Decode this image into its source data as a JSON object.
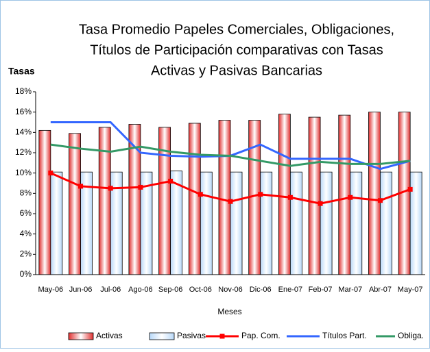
{
  "chart_data": {
    "type": "bar_line",
    "title": [
      "Tasa Promedio Papeles Comerciales, Obligaciones,",
      "Títulos de Participación comparativas con Tasas",
      "Activas y Pasivas Bancarias"
    ],
    "y_label": "Tasas",
    "x_label": "Meses",
    "categories": [
      "May-06",
      "Jun-06",
      "Jul-06",
      "Ago-06",
      "Sep-06",
      "Oct-06",
      "Nov-06",
      "Dic-06",
      "Ene-07",
      "Feb-07",
      "Mar-07",
      "Abr-07",
      "May-07"
    ],
    "ylim": [
      0,
      18
    ],
    "yticks": [
      {
        "value": 0,
        "label": "0%"
      },
      {
        "value": 2,
        "label": "2%"
      },
      {
        "value": 4,
        "label": "4%"
      },
      {
        "value": 6,
        "label": "6%"
      },
      {
        "value": 8,
        "label": "8%"
      },
      {
        "value": 10,
        "label": "10%"
      },
      {
        "value": 12,
        "label": "12%"
      },
      {
        "value": 14,
        "label": "14%"
      },
      {
        "value": 16,
        "label": "16%"
      },
      {
        "value": 18,
        "label": "18%"
      }
    ],
    "series": [
      {
        "name": "Activas",
        "kind": "bar",
        "color": "#e03030",
        "values": [
          14.2,
          13.9,
          14.5,
          14.8,
          14.5,
          14.9,
          15.2,
          15.2,
          15.8,
          15.5,
          15.7,
          16.0,
          16.0
        ]
      },
      {
        "name": "Pasivas",
        "kind": "bar",
        "color": "#b8d8f8",
        "values": [
          10.1,
          10.1,
          10.1,
          10.1,
          10.2,
          10.1,
          10.1,
          10.1,
          10.1,
          10.1,
          10.1,
          10.1,
          10.1
        ]
      },
      {
        "name": "Pap. Com.",
        "kind": "line",
        "marker": "square",
        "color": "#ff0000",
        "values": [
          10.0,
          8.7,
          8.5,
          8.6,
          9.2,
          7.9,
          7.2,
          7.9,
          7.6,
          7.0,
          7.6,
          7.3,
          8.4
        ]
      },
      {
        "name": "Títulos Part.",
        "kind": "line",
        "color": "#3366ff",
        "values": [
          15.0,
          15.0,
          15.0,
          12.0,
          11.7,
          11.6,
          11.7,
          12.8,
          11.4,
          11.4,
          11.4,
          10.4,
          11.2
        ]
      },
      {
        "name": "Obliga.",
        "kind": "line",
        "color": "#339966",
        "values": [
          12.8,
          12.4,
          12.1,
          12.6,
          12.1,
          11.8,
          11.7,
          11.2,
          10.7,
          11.1,
          10.9,
          10.9,
          11.2
        ]
      }
    ]
  }
}
